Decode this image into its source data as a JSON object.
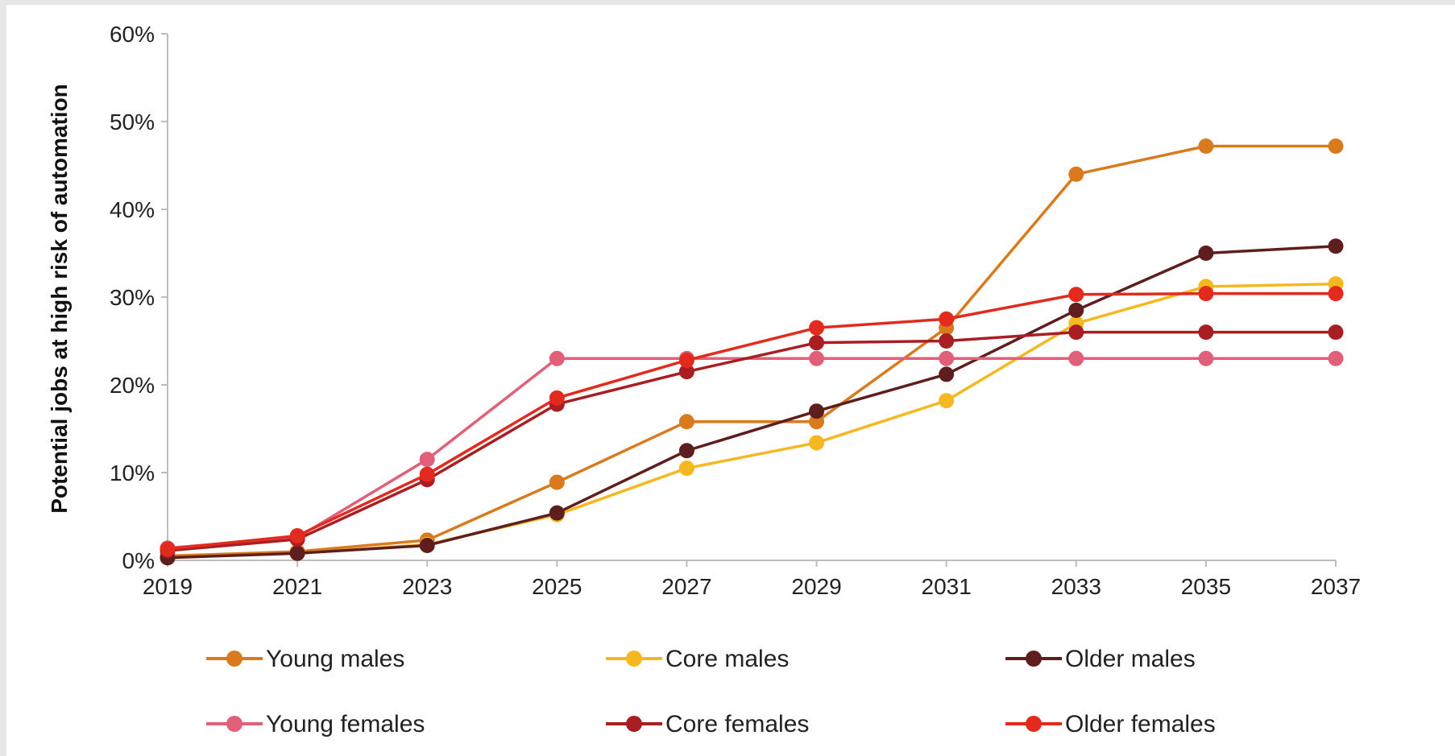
{
  "chart_data": {
    "type": "line",
    "title": "",
    "xlabel": "",
    "ylabel": "Potential jobs at high risk of automation",
    "x": [
      2019,
      2021,
      2023,
      2025,
      2027,
      2029,
      2031,
      2033,
      2035,
      2037
    ],
    "x_tick_labels": [
      "2019",
      "2021",
      "2023",
      "2025",
      "2027",
      "2029",
      "2031",
      "2033",
      "2035",
      "2037"
    ],
    "ylim": [
      0,
      60
    ],
    "y_ticks": [
      0,
      10,
      20,
      30,
      40,
      50,
      60
    ],
    "y_tick_labels": [
      "0%",
      "10%",
      "20%",
      "30%",
      "40%",
      "50%",
      "60%"
    ],
    "grid": false,
    "legend_position": "bottom",
    "series": [
      {
        "name": "Young males",
        "color": "#D97A1E",
        "values": [
          0.5,
          1.0,
          2.3,
          8.9,
          15.8,
          15.8,
          26.5,
          44.0,
          47.2,
          47.2
        ]
      },
      {
        "name": "Core males",
        "color": "#F5B820",
        "values": [
          0.3,
          0.8,
          1.8,
          5.2,
          10.5,
          13.4,
          18.2,
          27.0,
          31.2,
          31.5
        ]
      },
      {
        "name": "Older males",
        "color": "#5E1E1E",
        "values": [
          0.3,
          0.8,
          1.7,
          5.4,
          12.5,
          17.0,
          21.2,
          28.5,
          35.0,
          35.8
        ]
      },
      {
        "name": "Young females",
        "color": "#E0607A",
        "values": [
          1.4,
          2.6,
          11.5,
          23.0,
          23.0,
          23.0,
          23.0,
          23.0,
          23.0,
          23.0
        ]
      },
      {
        "name": "Core females",
        "color": "#A81E22",
        "values": [
          1.1,
          2.4,
          9.2,
          17.8,
          21.5,
          24.8,
          25.0,
          26.0,
          26.0,
          26.0
        ]
      },
      {
        "name": "Older females",
        "color": "#E22A1E",
        "values": [
          1.3,
          2.8,
          9.8,
          18.5,
          22.8,
          26.5,
          27.5,
          30.3,
          30.4,
          30.4
        ]
      }
    ]
  }
}
